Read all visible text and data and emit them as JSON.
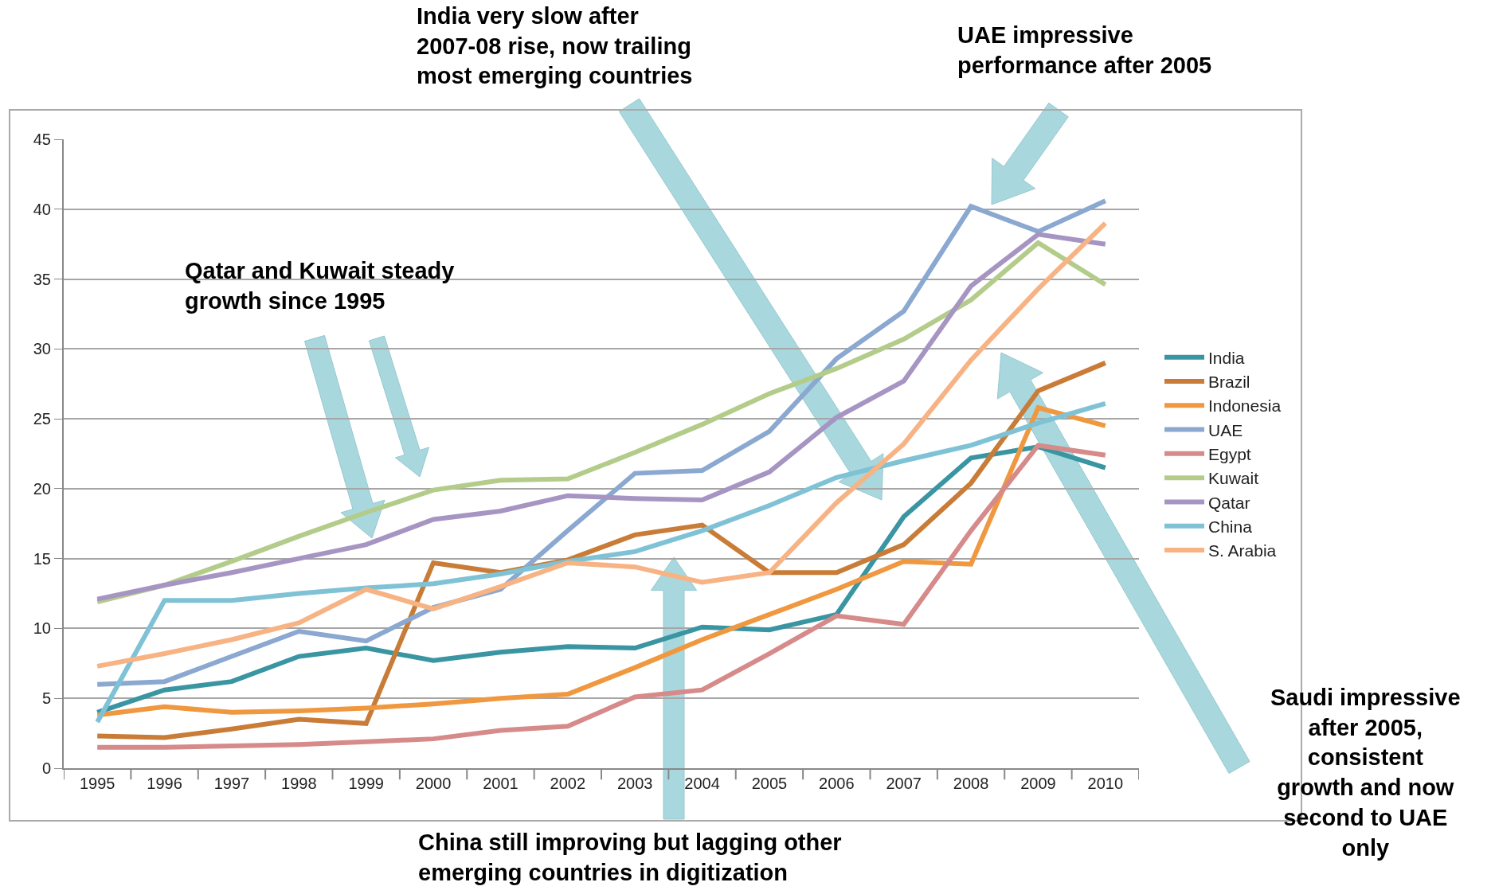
{
  "chart_data": {
    "type": "line",
    "categories": [
      "1995",
      "1996",
      "1997",
      "1998",
      "1999",
      "2000",
      "2001",
      "2002",
      "2003",
      "2004",
      "2005",
      "2006",
      "2007",
      "2008",
      "2009",
      "2010"
    ],
    "series": [
      {
        "name": "India",
        "color": "#3a95a3",
        "values": [
          4.0,
          5.6,
          6.2,
          8.0,
          8.6,
          7.7,
          8.3,
          8.7,
          8.6,
          10.1,
          9.9,
          11.0,
          18.0,
          22.2,
          23.0,
          21.5
        ]
      },
      {
        "name": "Brazil",
        "color": "#c97c37",
        "values": [
          2.3,
          2.2,
          2.8,
          3.5,
          3.2,
          14.7,
          14.0,
          14.9,
          16.7,
          17.4,
          14.0,
          14.0,
          16.0,
          20.4,
          27.0,
          29.0
        ]
      },
      {
        "name": "Indonesia",
        "color": "#f0983f",
        "values": [
          3.8,
          4.4,
          4.0,
          4.1,
          4.3,
          4.6,
          5.0,
          5.3,
          7.2,
          9.2,
          11.0,
          12.8,
          14.8,
          14.6,
          25.8,
          24.5
        ]
      },
      {
        "name": "UAE",
        "color": "#8aa8d0",
        "values": [
          6.0,
          6.2,
          8.0,
          9.8,
          9.1,
          11.5,
          12.8,
          17.0,
          21.1,
          21.3,
          24.1,
          29.3,
          32.7,
          40.2,
          38.4,
          40.6
        ]
      },
      {
        "name": "Egypt",
        "color": "#d68a8a",
        "values": [
          1.5,
          1.5,
          1.6,
          1.7,
          1.9,
          2.1,
          2.7,
          3.0,
          5.1,
          5.6,
          8.2,
          10.9,
          10.3,
          17.0,
          23.1,
          22.4
        ]
      },
      {
        "name": "Kuwait",
        "color": "#b3cc8a",
        "values": [
          11.9,
          13.1,
          14.8,
          16.6,
          18.3,
          19.9,
          20.6,
          20.7,
          22.6,
          24.6,
          26.8,
          28.6,
          30.7,
          33.5,
          37.6,
          34.6
        ]
      },
      {
        "name": "Qatar",
        "color": "#a695c2",
        "values": [
          12.1,
          13.1,
          14.0,
          15.0,
          16.0,
          17.8,
          18.4,
          19.5,
          19.3,
          19.2,
          21.2,
          25.1,
          27.7,
          34.5,
          38.2,
          37.5
        ]
      },
      {
        "name": "China",
        "color": "#7fc2d6",
        "values": [
          3.3,
          12.0,
          12.0,
          12.5,
          12.9,
          13.2,
          13.9,
          14.8,
          15.5,
          17.0,
          18.8,
          20.8,
          22.0,
          23.1,
          24.7,
          26.1
        ]
      },
      {
        "name": "S. Arabia",
        "color": "#f7b383",
        "values": [
          7.3,
          8.2,
          9.2,
          10.4,
          12.8,
          11.4,
          13.0,
          14.7,
          14.4,
          13.3,
          14.0,
          19.0,
          23.2,
          29.2,
          34.3,
          39.0
        ]
      }
    ],
    "ylim": [
      0,
      45
    ],
    "yticks": [
      0,
      5,
      10,
      15,
      20,
      25,
      30,
      35,
      40,
      45
    ],
    "grid": "y",
    "legend": "right",
    "marker": "none",
    "line_style": "solid",
    "annotations": [
      "Qatar and Kuwait steady\ngrowth since 1995",
      "India very slow after\n2007-08 rise, now trailing\nmost emerging countries",
      "UAE impressive\nperformance after 2005",
      "China still improving but lagging other\nemerging countries in digitization",
      "Saudi impressive\nafter 2005,\nconsistent\ngrowth and now\nsecond to UAE\nonly"
    ]
  }
}
